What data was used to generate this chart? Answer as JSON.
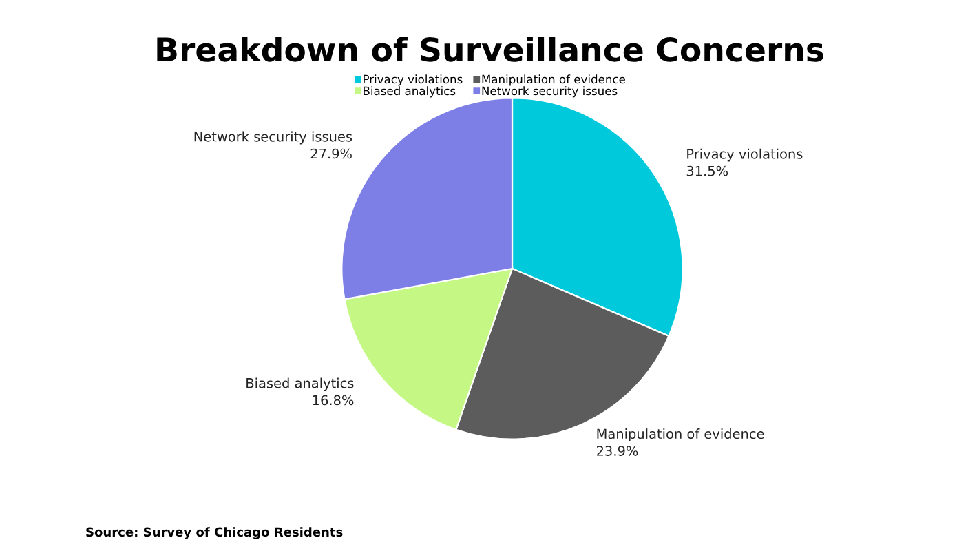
{
  "chart_data": {
    "type": "pie",
    "title": "Breakdown of Surveillance Concerns",
    "categories": [
      "Privacy violations",
      "Manipulation of evidence",
      "Biased analytics",
      "Network security issues"
    ],
    "values": [
      31.5,
      23.9,
      16.8,
      27.9
    ],
    "value_labels": [
      "31.5%",
      "23.9%",
      "16.8%",
      "27.9%"
    ],
    "colors": [
      "#00c9dc",
      "#5c5c5c",
      "#c4f784",
      "#7d7fe6"
    ],
    "legend": "top",
    "annotations": [
      "Source: Survey of Chicago Residents"
    ]
  }
}
